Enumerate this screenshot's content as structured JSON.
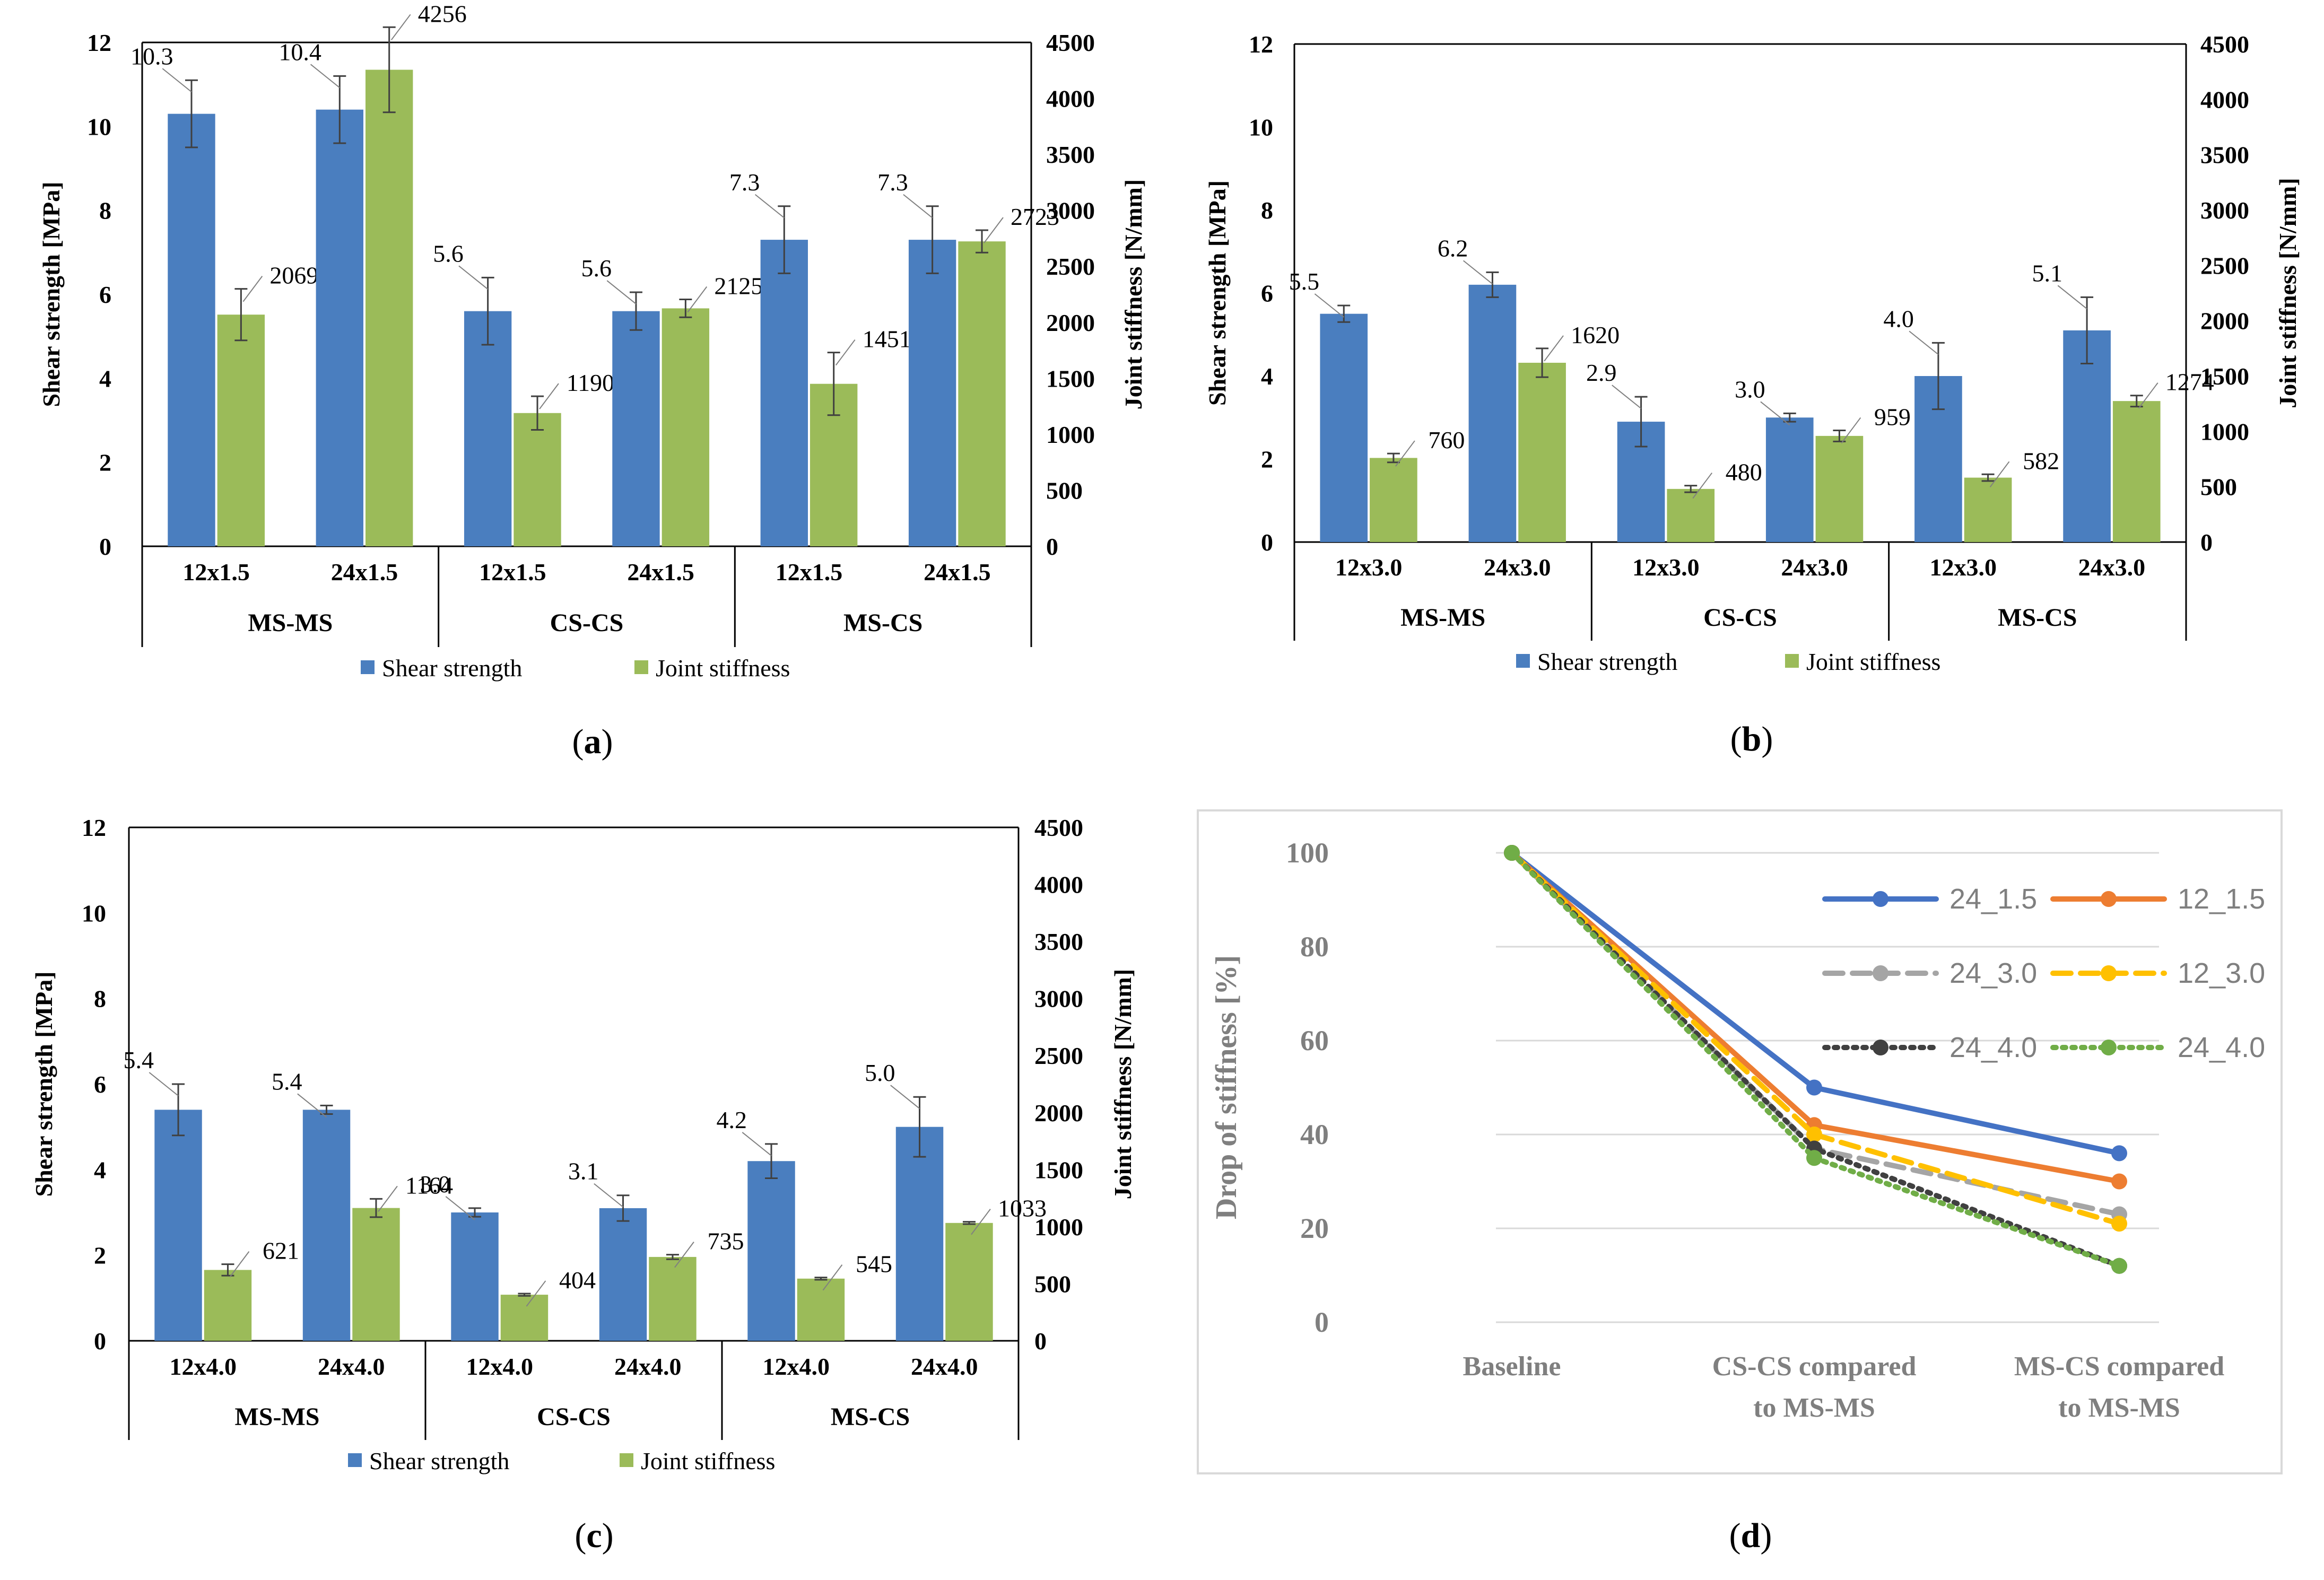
{
  "colors": {
    "shear": "#4A7EBF",
    "stiffness": "#9BBB59",
    "axis": "#000000",
    "grid": "#D9D9D9",
    "line_24_1_5": "#4472C4",
    "line_12_1_5": "#ED7D31",
    "line_24_3_0": "#A5A5A5",
    "line_12_3_0": "#FFC000",
    "line_24_4_0_a": "#404040",
    "line_24_4_0_b": "#70AD47",
    "gray_text": "#7F7F7F"
  },
  "chart_data": [
    {
      "id": "a",
      "type": "bar",
      "panel_label": "(a)",
      "panel_letter": "a",
      "ylabel": "Shear strength [MPa]",
      "y2label": "Joint stiffness [N/mm]",
      "ylim": [
        0,
        12
      ],
      "y2lim": [
        0,
        4500
      ],
      "yticks": [
        "0",
        "2",
        "4",
        "6",
        "8",
        "10",
        "12"
      ],
      "y2ticks": [
        "0",
        "500",
        "1000",
        "1500",
        "2000",
        "2500",
        "3000",
        "3500",
        "4000",
        "4500"
      ],
      "categories": [
        "12x1.5",
        "24x1.5",
        "12x1.5",
        "24x1.5",
        "12x1.5",
        "24x1.5"
      ],
      "groups": [
        "MS-MS",
        "CS-CS",
        "MS-CS"
      ],
      "legend": [
        "Shear strength",
        "Joint stiffness"
      ],
      "series": [
        {
          "name": "Shear strength",
          "values": [
            10.3,
            10.4,
            5.6,
            5.6,
            7.3,
            7.3
          ],
          "labels": [
            "10.3",
            "10.4",
            "5.6",
            "5.6",
            "7.3",
            "7.3"
          ],
          "errors": [
            0.8,
            0.8,
            0.8,
            0.45,
            0.8,
            0.8
          ]
        },
        {
          "name": "Joint stiffness",
          "values": [
            2069,
            4256,
            1190,
            2125,
            1451,
            2723
          ],
          "labels": [
            "2069",
            "4256",
            "1190",
            "2125",
            "1451",
            "2723"
          ],
          "errors": [
            230,
            380,
            150,
            80,
            280,
            100
          ]
        }
      ]
    },
    {
      "id": "b",
      "type": "bar",
      "panel_label": "(b)",
      "panel_letter": "b",
      "ylabel": "Shear strength [MPa]",
      "y2label": "Joint stiffness [N/mm]",
      "ylim": [
        0,
        12
      ],
      "y2lim": [
        0,
        4500
      ],
      "yticks": [
        "0",
        "2",
        "4",
        "6",
        "8",
        "10",
        "12"
      ],
      "y2ticks": [
        "0",
        "500",
        "1000",
        "1500",
        "2000",
        "2500",
        "3000",
        "3500",
        "4000",
        "4500"
      ],
      "categories": [
        "12x3.0",
        "24x3.0",
        "12x3.0",
        "24x3.0",
        "12x3.0",
        "24x3.0"
      ],
      "groups": [
        "MS-MS",
        "CS-CS",
        "MS-CS"
      ],
      "legend": [
        "Shear strength",
        "Joint stiffness"
      ],
      "series": [
        {
          "name": "Shear strength",
          "values": [
            5.5,
            6.2,
            2.9,
            3.0,
            4.0,
            5.1
          ],
          "labels": [
            "5.5",
            "6.2",
            "2.9",
            "3.0",
            "4.0",
            "5.1"
          ],
          "errors": [
            0.2,
            0.3,
            0.6,
            0.1,
            0.8,
            0.8
          ]
        },
        {
          "name": "Joint stiffness",
          "values": [
            760,
            1620,
            480,
            959,
            582,
            1274
          ],
          "labels": [
            "760",
            "1620",
            "480",
            "959",
            "582",
            "1274"
          ],
          "errors": [
            40,
            130,
            30,
            50,
            30,
            50
          ]
        }
      ]
    },
    {
      "id": "c",
      "type": "bar",
      "panel_label": "(c)",
      "panel_letter": "c",
      "ylabel": "Shear strength [MPa]",
      "y2label": "Joint stiffness [N/mm]",
      "ylim": [
        0,
        12
      ],
      "y2lim": [
        0,
        4500
      ],
      "yticks": [
        "0",
        "2",
        "4",
        "6",
        "8",
        "10",
        "12"
      ],
      "y2ticks": [
        "0",
        "500",
        "1000",
        "1500",
        "2000",
        "2500",
        "3000",
        "3500",
        "4000",
        "4500"
      ],
      "categories": [
        "12x4.0",
        "24x4.0",
        "12x4.0",
        "24x4.0",
        "12x4.0",
        "24x4.0"
      ],
      "groups": [
        "MS-MS",
        "CS-CS",
        "MS-CS"
      ],
      "legend": [
        "Shear strength",
        "Joint stiffness"
      ],
      "series": [
        {
          "name": "Shear strength",
          "values": [
            5.4,
            5.4,
            3.0,
            3.1,
            4.2,
            5.0
          ],
          "labels": [
            "5.4",
            "5.4",
            "3.0",
            "3.1",
            "4.2",
            "5.0"
          ],
          "errors": [
            0.6,
            0.1,
            0.1,
            0.3,
            0.4,
            0.7
          ]
        },
        {
          "name": "Joint stiffness",
          "values": [
            621,
            1164,
            404,
            735,
            545,
            1033
          ],
          "labels": [
            "621",
            "1164",
            "404",
            "735",
            "545",
            "1033"
          ],
          "errors": [
            50,
            80,
            10,
            20,
            10,
            10
          ]
        }
      ]
    },
    {
      "id": "d",
      "type": "line",
      "panel_label": "(d)",
      "panel_letter": "d",
      "ylabel": "Drop of stiffness [%]",
      "ylim": [
        0,
        100
      ],
      "yticks": [
        "0",
        "20",
        "40",
        "60",
        "80",
        "100"
      ],
      "categories": [
        "Baseline",
        "CS-CS compared to MS-MS",
        "MS-CS compared to MS-MS"
      ],
      "category_lines": [
        [
          "Baseline"
        ],
        [
          "CS-CS compared",
          "to MS-MS"
        ],
        [
          "MS-CS compared",
          "to MS-MS"
        ]
      ],
      "series": [
        {
          "name": "24_1.5",
          "values": [
            100,
            50,
            36
          ],
          "style": "solid",
          "color_key": "line_24_1_5"
        },
        {
          "name": "12_1.5",
          "values": [
            100,
            42,
            30
          ],
          "style": "solid",
          "color_key": "line_12_1_5"
        },
        {
          "name": "24_3.0",
          "values": [
            100,
            37,
            23
          ],
          "style": "dash",
          "color_key": "line_24_3_0"
        },
        {
          "name": "12_3.0",
          "values": [
            100,
            40,
            21
          ],
          "style": "dash",
          "color_key": "line_12_3_0"
        },
        {
          "name": "24_4.0",
          "values": [
            100,
            37,
            12
          ],
          "style": "dot",
          "color_key": "line_24_4_0_a"
        },
        {
          "name": "24_4.0",
          "values": [
            100,
            35,
            12
          ],
          "style": "dot",
          "color_key": "line_24_4_0_b"
        }
      ]
    }
  ]
}
